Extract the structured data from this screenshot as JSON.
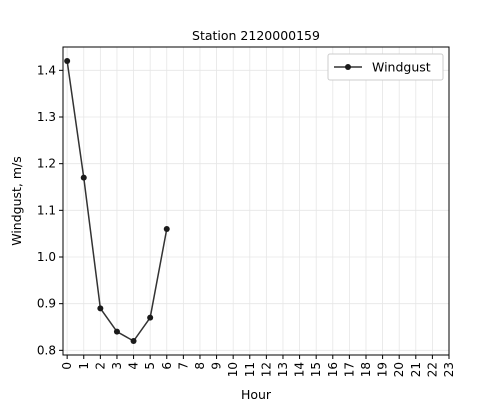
{
  "chart_data": {
    "type": "line",
    "title": "Station 2120000159",
    "xlabel": "Hour",
    "ylabel": "Windgust, m/s",
    "x_ticks": [
      "0",
      "1",
      "2",
      "3",
      "4",
      "5",
      "6",
      "7",
      "8",
      "9",
      "10",
      "11",
      "12",
      "13",
      "14",
      "15",
      "16",
      "17",
      "18",
      "19",
      "20",
      "21",
      "22",
      "23"
    ],
    "y_ticks": [
      0.8,
      0.9,
      1.0,
      1.1,
      1.2,
      1.3,
      1.4
    ],
    "y_tick_labels": [
      "0.8",
      "0.9",
      "1.0",
      "1.1",
      "1.2",
      "1.3",
      "1.4"
    ],
    "xlim": [
      -0.25,
      23
    ],
    "ylim": [
      0.79,
      1.45
    ],
    "grid": true,
    "legend_position": "top-right",
    "series": [
      {
        "name": "Windgust",
        "color": "#333333",
        "x": [
          0,
          1,
          2,
          3,
          4,
          5,
          6
        ],
        "values": [
          1.42,
          1.17,
          0.89,
          0.84,
          0.82,
          0.87,
          1.06
        ]
      }
    ]
  }
}
